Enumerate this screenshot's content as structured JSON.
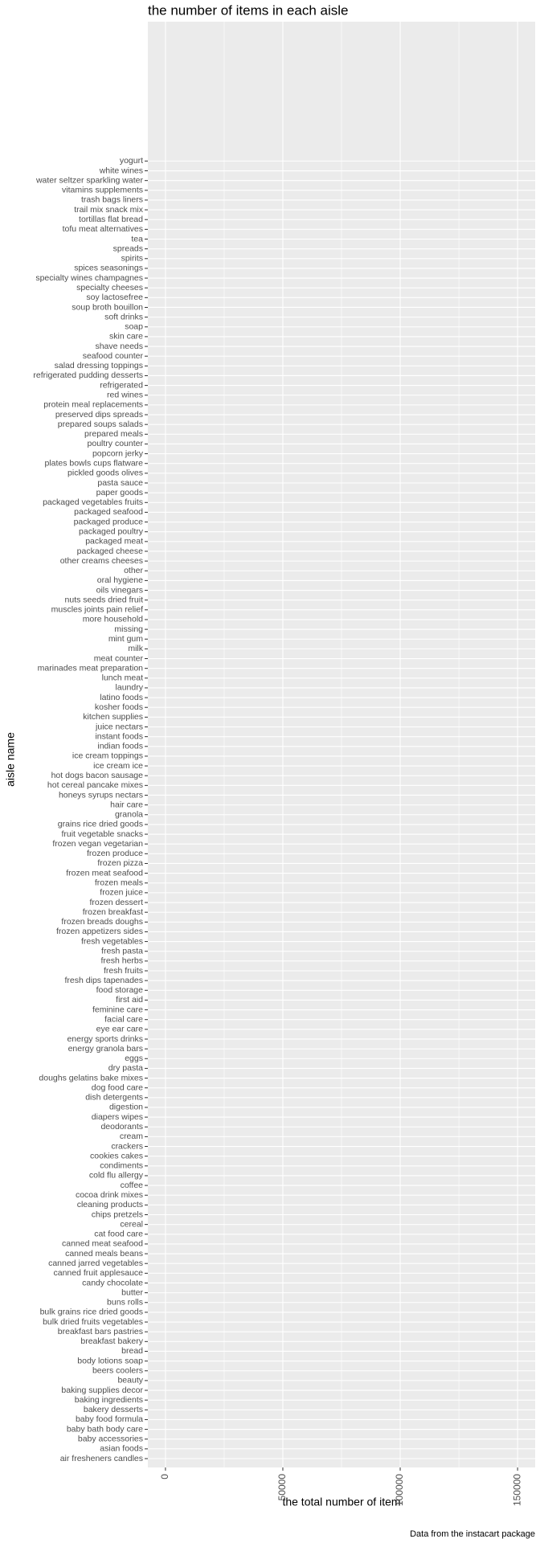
{
  "chart_data": {
    "type": "bar",
    "orientation": "horizontal",
    "title": "the number of items in each aisle",
    "x_label": "the total number of item",
    "y_label": "aisle name",
    "caption": "Data from the instacart package",
    "categories": [
      "air fresheners candles",
      "asian foods",
      "baby accessories",
      "baby bath body care",
      "baby food formula",
      "bakery desserts",
      "baking ingredients",
      "baking supplies decor",
      "beauty",
      "beers coolers",
      "body lotions soap",
      "bread",
      "breakfast bakery",
      "breakfast bars pastries",
      "bulk dried fruits vegetables",
      "bulk grains rice dried goods",
      "buns rolls",
      "butter",
      "candy chocolate",
      "canned fruit applesauce",
      "canned jarred vegetables",
      "canned meals beans",
      "canned meat seafood",
      "cat food care",
      "cereal",
      "chips pretzels",
      "cleaning products",
      "cocoa drink mixes",
      "coffee",
      "cold flu allergy",
      "condiments",
      "cookies cakes",
      "crackers",
      "cream",
      "deodorants",
      "diapers wipes",
      "digestion",
      "dish detergents",
      "dog food care",
      "doughs gelatins bake mixes",
      "dry pasta",
      "eggs",
      "energy granola bars",
      "energy sports drinks",
      "eye ear care",
      "facial care",
      "feminine care",
      "first aid",
      "food storage",
      "fresh dips tapenades",
      "fresh fruits",
      "fresh herbs",
      "fresh pasta",
      "fresh vegetables",
      "frozen appetizers sides",
      "frozen breads doughs",
      "frozen breakfast",
      "frozen dessert",
      "frozen juice",
      "frozen meals",
      "frozen meat seafood",
      "frozen pizza",
      "frozen produce",
      "frozen vegan vegetarian",
      "fruit vegetable snacks",
      "grains rice dried goods",
      "granola",
      "hair care",
      "honeys syrups nectars",
      "hot cereal pancake mixes",
      "hot dogs bacon sausage",
      "ice cream ice",
      "ice cream toppings",
      "indian foods",
      "instant foods",
      "juice nectars",
      "kitchen supplies",
      "kosher foods",
      "latino foods",
      "laundry",
      "lunch meat",
      "marinades meat preparation",
      "meat counter",
      "milk",
      "mint gum",
      "missing",
      "more household",
      "muscles joints pain relief",
      "nuts seeds dried fruit",
      "oils vinegars",
      "oral hygiene",
      "other",
      "other creams cheeses",
      "packaged cheese",
      "packaged meat",
      "packaged poultry",
      "packaged produce",
      "packaged seafood",
      "packaged vegetables fruits",
      "paper goods",
      "pasta sauce",
      "pickled goods olives",
      "plates bowls cups flatware",
      "popcorn jerky",
      "poultry counter",
      "prepared meals",
      "prepared soups salads",
      "preserved dips spreads",
      "protein meal replacements",
      "red wines",
      "refrigerated",
      "refrigerated pudding desserts",
      "salad dressing toppings",
      "seafood counter",
      "shave needs",
      "skin care",
      "soap",
      "soft drinks",
      "soup broth bouillon",
      "soy lactosefree",
      "specialty cheeses",
      "specialty wines champagnes",
      "spices seasonings",
      "spirits",
      "spreads",
      "tea",
      "tofu meat alternatives",
      "tortillas flat bread",
      "trail mix snack mix",
      "trash bags liners",
      "vitamins supplements",
      "water seltzer sparkling water",
      "white wines",
      "yogurt"
    ],
    "values": [
      0,
      0,
      0,
      0,
      0,
      0,
      0,
      0,
      0,
      0,
      0,
      0,
      0,
      0,
      0,
      0,
      0,
      0,
      0,
      0,
      0,
      0,
      0,
      0,
      0,
      0,
      0,
      0,
      0,
      0,
      0,
      0,
      0,
      0,
      0,
      0,
      0,
      0,
      0,
      0,
      0,
      0,
      0,
      0,
      0,
      0,
      0,
      0,
      0,
      0,
      0,
      0,
      0,
      0,
      0,
      0,
      0,
      0,
      0,
      0,
      0,
      0,
      0,
      0,
      0,
      0,
      0,
      0,
      0,
      0,
      0,
      0,
      0,
      0,
      0,
      0,
      0,
      0,
      0,
      0,
      0,
      0,
      0,
      0,
      0,
      0,
      0,
      0,
      0,
      0,
      0,
      0,
      0,
      0,
      0,
      0,
      0,
      0,
      0,
      0,
      0,
      0,
      0,
      0,
      0,
      0,
      0,
      0,
      0,
      0,
      0,
      0,
      0,
      0,
      0,
      0,
      0,
      0,
      0,
      0,
      0,
      0,
      0,
      0,
      0,
      0,
      0,
      0,
      0,
      0,
      0,
      0,
      0,
      0
    ],
    "color": "#595959",
    "xlim": [
      -7500,
      157500
    ],
    "xticks": [
      0,
      50000,
      100000,
      150000
    ],
    "grid": true
  }
}
